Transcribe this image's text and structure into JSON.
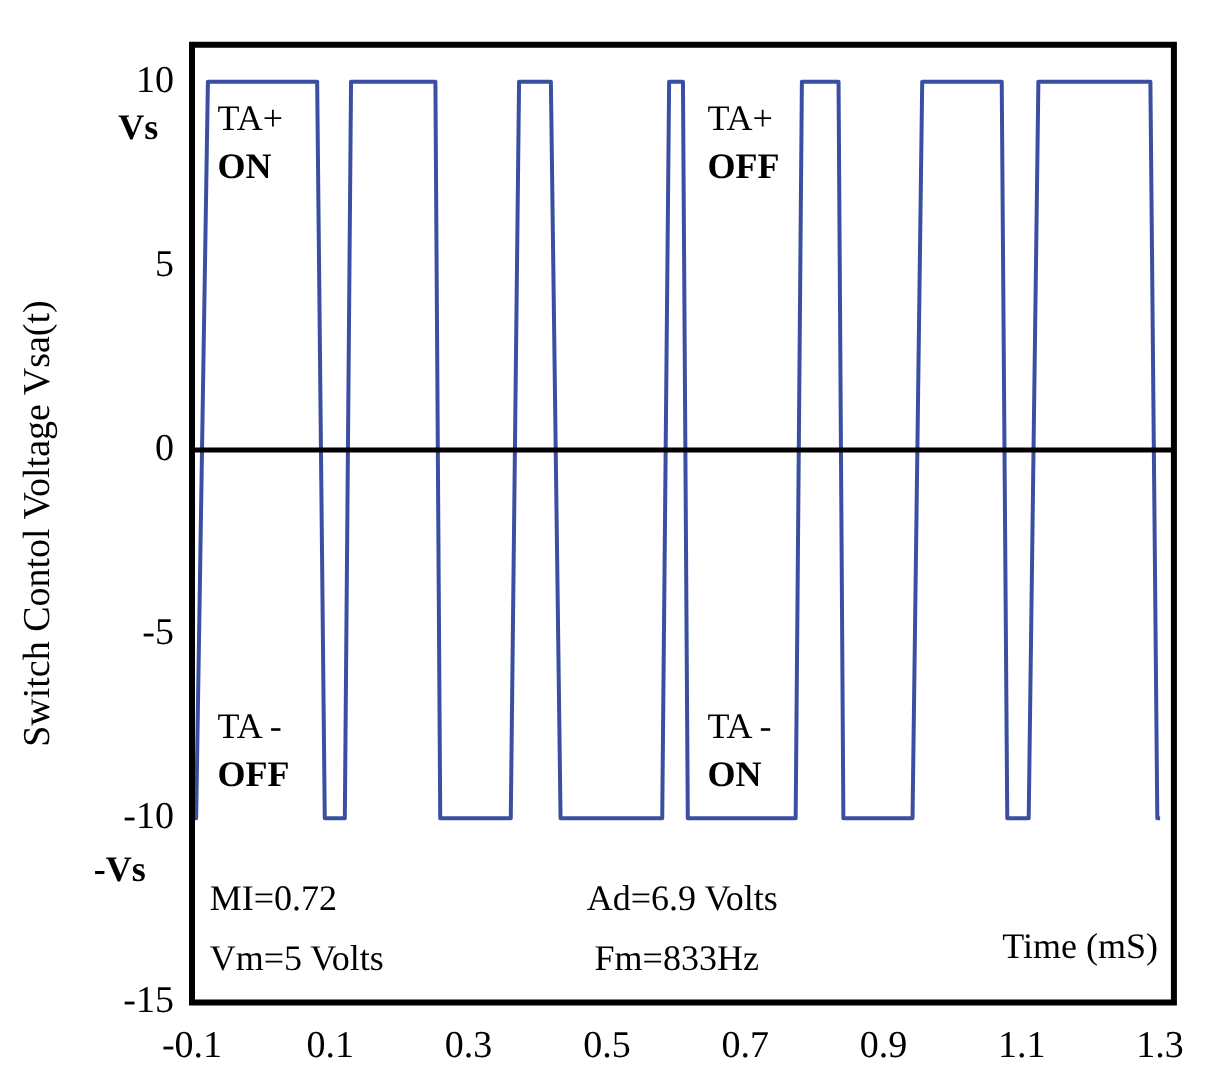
{
  "chart_data": {
    "type": "line",
    "xlabel": "Time (mS)",
    "ylabel": "Switch Contol Voltage Vsa(t)",
    "xlim": [
      -0.1,
      1.32
    ],
    "xticks": [
      -0.1,
      0.1,
      0.3,
      0.5,
      0.7,
      0.9,
      1.1,
      1.3
    ],
    "ylim": [
      -15,
      11
    ],
    "yticks": [
      -15,
      -10,
      -5,
      0,
      5,
      10
    ],
    "grid": false,
    "legend": false,
    "marker": "none",
    "line_style": "solid",
    "series": [
      {
        "color": "#3a4fa0",
        "x": [
          -0.1,
          -0.094,
          -0.077,
          0.081,
          0.092,
          0.121,
          0.13,
          0.252,
          0.259,
          0.361,
          0.373,
          0.419,
          0.433,
          0.58,
          0.59,
          0.61,
          0.617,
          0.773,
          0.782,
          0.835,
          0.842,
          0.942,
          0.956,
          1.071,
          1.079,
          1.11,
          1.124,
          1.286,
          1.296,
          1.3
        ],
        "values": [
          -10,
          -10,
          10,
          10,
          -10,
          -10,
          10,
          10,
          -10,
          -10,
          10,
          10,
          -10,
          -10,
          10,
          10,
          -10,
          -10,
          10,
          10,
          -10,
          -10,
          10,
          10,
          -10,
          -10,
          10,
          10,
          -10,
          -10
        ]
      }
    ],
    "ref_lines": [
      {
        "axis": "y",
        "value": 0,
        "color": "#000000"
      }
    ],
    "annotations": [
      "TA+\nON",
      "TA+\nOFF",
      "TA -\nOFF",
      "TA -\nON",
      "Vs",
      "-Vs",
      "MI=0.72",
      "Ad=6.9 Volts",
      "Vm=5 Volts",
      "Fm=833Hz"
    ]
  }
}
